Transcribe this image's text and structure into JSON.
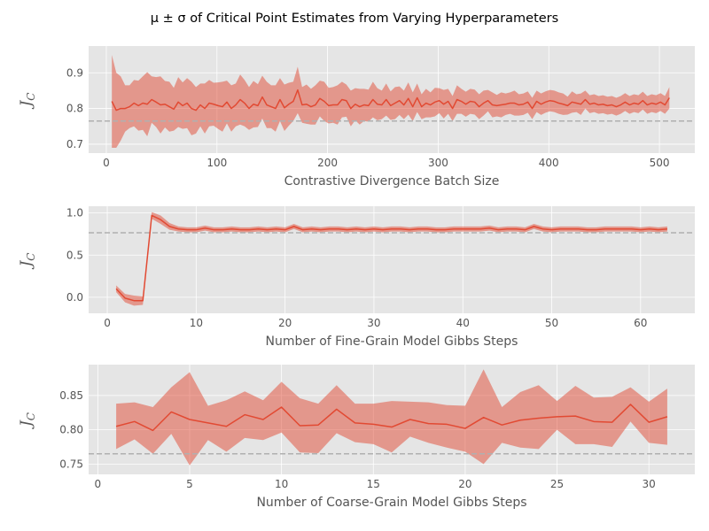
{
  "figure": {
    "title": "μ ± σ of Critical Point Estimates from Varying Hyperparameters"
  },
  "colors": {
    "panel_bg": "#e5e5e5",
    "grid": "#ffffff",
    "mean_line": "#e24a33",
    "band_fill": "#e24a33",
    "reference_line": "#b0b0b0",
    "text": "#555555"
  },
  "chart_data": [
    {
      "type": "line",
      "xlabel": "Contrastive Divergence Batch Size",
      "ylabel": "J",
      "ylabel_sub": "C",
      "xlim": [
        -16,
        532
      ],
      "ylim": [
        0.675,
        0.975
      ],
      "xticks": [
        0,
        100,
        200,
        300,
        400,
        500
      ],
      "yticks": [
        0.7,
        0.8,
        0.9
      ],
      "ytick_labels": [
        "0.7",
        "0.8",
        "0.9"
      ],
      "reference_line": 0.765,
      "grid": true,
      "series": [
        {
          "x": [
            5,
            9,
            13,
            17,
            21,
            25,
            29,
            33,
            37,
            41,
            45,
            49,
            53,
            57,
            61,
            65,
            69,
            73,
            77,
            81,
            85,
            89,
            93,
            97,
            101,
            105,
            109,
            113,
            117,
            121,
            125,
            129,
            133,
            137,
            141,
            145,
            149,
            153,
            157,
            161,
            165,
            169,
            173,
            177,
            181,
            185,
            189,
            193,
            197,
            201,
            205,
            209,
            213,
            217,
            221,
            225,
            229,
            233,
            237,
            241,
            245,
            249,
            253,
            257,
            261,
            265,
            269,
            273,
            277,
            281,
            285,
            289,
            293,
            297,
            301,
            305,
            309,
            313,
            317,
            321,
            325,
            329,
            333,
            337,
            341,
            345,
            349,
            353,
            357,
            361,
            365,
            369,
            373,
            377,
            381,
            385,
            389,
            393,
            397,
            401,
            405,
            409,
            413,
            417,
            421,
            425,
            429,
            433,
            437,
            441,
            445,
            449,
            453,
            457,
            461,
            465,
            469,
            473,
            477,
            481,
            485,
            489,
            493,
            497,
            501,
            505,
            509
          ],
          "mean": [
            0.82,
            0.795,
            0.8,
            0.8,
            0.805,
            0.815,
            0.808,
            0.815,
            0.812,
            0.825,
            0.818,
            0.81,
            0.812,
            0.805,
            0.798,
            0.818,
            0.808,
            0.815,
            0.8,
            0.795,
            0.81,
            0.8,
            0.815,
            0.812,
            0.808,
            0.805,
            0.818,
            0.8,
            0.81,
            0.825,
            0.815,
            0.8,
            0.812,
            0.808,
            0.832,
            0.81,
            0.805,
            0.8,
            0.825,
            0.802,
            0.812,
            0.82,
            0.852,
            0.81,
            0.812,
            0.805,
            0.81,
            0.828,
            0.82,
            0.808,
            0.81,
            0.81,
            0.825,
            0.822,
            0.8,
            0.812,
            0.805,
            0.81,
            0.808,
            0.825,
            0.812,
            0.81,
            0.825,
            0.808,
            0.815,
            0.822,
            0.81,
            0.828,
            0.805,
            0.83,
            0.805,
            0.815,
            0.81,
            0.818,
            0.822,
            0.812,
            0.82,
            0.8,
            0.825,
            0.82,
            0.812,
            0.82,
            0.818,
            0.805,
            0.815,
            0.822,
            0.81,
            0.808,
            0.81,
            0.812,
            0.815,
            0.815,
            0.81,
            0.812,
            0.818,
            0.8,
            0.82,
            0.812,
            0.818,
            0.822,
            0.82,
            0.815,
            0.812,
            0.808,
            0.818,
            0.815,
            0.812,
            0.825,
            0.812,
            0.815,
            0.81,
            0.812,
            0.808,
            0.81,
            0.805,
            0.81,
            0.818,
            0.81,
            0.815,
            0.812,
            0.822,
            0.81,
            0.815,
            0.812,
            0.818,
            0.81,
            0.83
          ],
          "sigma": [
            0.13,
            0.105,
            0.09,
            0.065,
            0.06,
            0.065,
            0.07,
            0.075,
            0.09,
            0.065,
            0.07,
            0.08,
            0.065,
            0.07,
            0.06,
            0.07,
            0.065,
            0.07,
            0.075,
            0.065,
            0.06,
            0.07,
            0.065,
            0.06,
            0.065,
            0.07,
            0.06,
            0.065,
            0.06,
            0.07,
            0.065,
            0.06,
            0.065,
            0.06,
            0.06,
            0.065,
            0.06,
            0.065,
            0.06,
            0.065,
            0.06,
            0.055,
            0.065,
            0.05,
            0.055,
            0.05,
            0.055,
            0.05,
            0.055,
            0.05,
            0.05,
            0.055,
            0.05,
            0.045,
            0.05,
            0.045,
            0.05,
            0.045,
            0.045,
            0.05,
            0.045,
            0.04,
            0.045,
            0.04,
            0.045,
            0.04,
            0.04,
            0.045,
            0.04,
            0.04,
            0.035,
            0.04,
            0.035,
            0.04,
            0.035,
            0.04,
            0.035,
            0.035,
            0.04,
            0.035,
            0.035,
            0.035,
            0.035,
            0.035,
            0.035,
            0.03,
            0.035,
            0.03,
            0.035,
            0.03,
            0.03,
            0.035,
            0.03,
            0.03,
            0.03,
            0.03,
            0.03,
            0.03,
            0.03,
            0.03,
            0.03,
            0.03,
            0.03,
            0.025,
            0.03,
            0.025,
            0.03,
            0.025,
            0.025,
            0.025,
            0.025,
            0.025,
            0.025,
            0.025,
            0.025,
            0.025,
            0.025,
            0.025,
            0.025,
            0.025,
            0.025,
            0.025,
            0.025,
            0.025,
            0.025,
            0.025,
            0.03
          ]
        }
      ]
    },
    {
      "type": "line",
      "xlabel": "Number of Fine-Grain Model Gibbs Steps",
      "ylabel": "J",
      "ylabel_sub": "C",
      "xlim": [
        -2.1,
        66.1
      ],
      "ylim": [
        -0.19,
        1.08
      ],
      "xticks": [
        0,
        10,
        20,
        30,
        40,
        50,
        60
      ],
      "yticks": [
        0.0,
        0.5,
        1.0
      ],
      "ytick_labels": [
        "0.0",
        "0.5",
        "1.0"
      ],
      "reference_line": 0.765,
      "grid": true,
      "series": [
        {
          "x": [
            1,
            2,
            3,
            4,
            5,
            6,
            7,
            8,
            9,
            10,
            11,
            12,
            13,
            14,
            15,
            16,
            17,
            18,
            19,
            20,
            21,
            22,
            23,
            24,
            25,
            26,
            27,
            28,
            29,
            30,
            31,
            32,
            33,
            34,
            35,
            36,
            37,
            38,
            39,
            40,
            41,
            42,
            43,
            44,
            45,
            46,
            47,
            48,
            49,
            50,
            51,
            52,
            53,
            54,
            55,
            56,
            57,
            58,
            59,
            60,
            61,
            62,
            63
          ],
          "mean": [
            0.1,
            -0.01,
            -0.04,
            -0.04,
            0.97,
            0.92,
            0.84,
            0.81,
            0.8,
            0.8,
            0.82,
            0.8,
            0.8,
            0.81,
            0.8,
            0.8,
            0.81,
            0.8,
            0.81,
            0.8,
            0.84,
            0.8,
            0.81,
            0.8,
            0.81,
            0.81,
            0.8,
            0.81,
            0.8,
            0.81,
            0.8,
            0.81,
            0.81,
            0.8,
            0.81,
            0.81,
            0.8,
            0.8,
            0.81,
            0.81,
            0.81,
            0.81,
            0.82,
            0.8,
            0.81,
            0.81,
            0.8,
            0.84,
            0.81,
            0.8,
            0.81,
            0.81,
            0.81,
            0.8,
            0.8,
            0.81,
            0.81,
            0.81,
            0.81,
            0.8,
            0.81,
            0.8,
            0.81
          ],
          "sigma": [
            0.04,
            0.05,
            0.06,
            0.05,
            0.04,
            0.05,
            0.04,
            0.03,
            0.03,
            0.03,
            0.03,
            0.03,
            0.03,
            0.03,
            0.03,
            0.03,
            0.03,
            0.03,
            0.03,
            0.03,
            0.03,
            0.03,
            0.03,
            0.03,
            0.03,
            0.03,
            0.03,
            0.03,
            0.03,
            0.03,
            0.03,
            0.03,
            0.03,
            0.03,
            0.03,
            0.03,
            0.03,
            0.03,
            0.03,
            0.03,
            0.03,
            0.03,
            0.03,
            0.03,
            0.03,
            0.03,
            0.03,
            0.03,
            0.03,
            0.03,
            0.03,
            0.03,
            0.03,
            0.03,
            0.03,
            0.03,
            0.03,
            0.03,
            0.03,
            0.03,
            0.03,
            0.03,
            0.03
          ]
        }
      ]
    },
    {
      "type": "line",
      "xlabel": "Number of Coarse-Grain Model Gibbs Steps",
      "ylabel": "J",
      "ylabel_sub": "C",
      "xlim": [
        -0.5,
        32.5
      ],
      "ylim": [
        0.735,
        0.895
      ],
      "xticks": [
        0,
        5,
        10,
        15,
        20,
        25,
        30
      ],
      "yticks": [
        0.75,
        0.8,
        0.85
      ],
      "ytick_labels": [
        "0.75",
        "0.80",
        "0.85"
      ],
      "reference_line": 0.765,
      "grid": true,
      "series": [
        {
          "x": [
            1,
            2,
            3,
            4,
            5,
            6,
            7,
            8,
            9,
            10,
            11,
            12,
            13,
            14,
            15,
            16,
            17,
            18,
            19,
            20,
            21,
            22,
            23,
            24,
            25,
            26,
            27,
            28,
            29,
            30,
            31
          ],
          "mean": [
            0.805,
            0.812,
            0.799,
            0.826,
            0.815,
            0.81,
            0.805,
            0.822,
            0.815,
            0.833,
            0.806,
            0.807,
            0.83,
            0.81,
            0.808,
            0.804,
            0.815,
            0.809,
            0.808,
            0.802,
            0.818,
            0.807,
            0.814,
            0.817,
            0.819,
            0.82,
            0.812,
            0.811,
            0.837,
            0.811,
            0.819
          ],
          "upper": [
            0.838,
            0.84,
            0.833,
            0.862,
            0.884,
            0.835,
            0.843,
            0.856,
            0.843,
            0.87,
            0.846,
            0.838,
            0.865,
            0.838,
            0.838,
            0.842,
            0.841,
            0.84,
            0.836,
            0.835,
            0.888,
            0.833,
            0.855,
            0.865,
            0.842,
            0.864,
            0.847,
            0.848,
            0.862,
            0.841,
            0.86
          ],
          "lower": [
            0.772,
            0.786,
            0.765,
            0.794,
            0.748,
            0.785,
            0.768,
            0.788,
            0.785,
            0.796,
            0.767,
            0.766,
            0.795,
            0.782,
            0.779,
            0.767,
            0.79,
            0.781,
            0.774,
            0.768,
            0.75,
            0.781,
            0.774,
            0.772,
            0.8,
            0.779,
            0.779,
            0.775,
            0.812,
            0.781,
            0.778
          ]
        }
      ]
    }
  ]
}
